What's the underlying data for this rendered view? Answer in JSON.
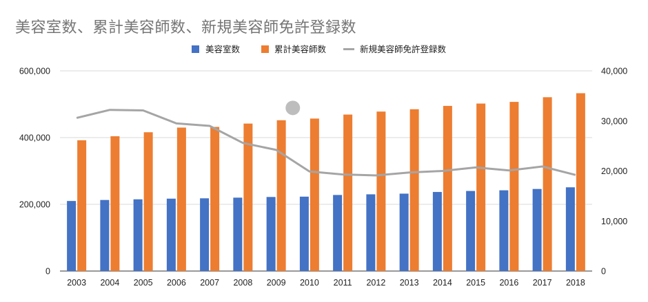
{
  "chart_data": {
    "type": "bar",
    "title": "美容室数、累計美容師数、新規美容師免許登録数",
    "categories": [
      "2003",
      "2004",
      "2005",
      "2006",
      "2007",
      "2008",
      "2009",
      "2010",
      "2011",
      "2012",
      "2013",
      "2014",
      "2015",
      "2016",
      "2017",
      "2018"
    ],
    "series": [
      {
        "name": "美容室数",
        "kind": "bar",
        "axis": "left",
        "color": "#4472C4",
        "values": [
          210000,
          213000,
          215000,
          217000,
          218000,
          220000,
          222000,
          223000,
          228000,
          230000,
          232000,
          237000,
          240000,
          242000,
          246000,
          251000
        ]
      },
      {
        "name": "累計美容師数",
        "kind": "bar",
        "axis": "left",
        "color": "#ED7D31",
        "values": [
          392000,
          404000,
          416000,
          430000,
          432000,
          442000,
          452000,
          457000,
          469000,
          478000,
          485000,
          495000,
          502000,
          507000,
          521000,
          533000
        ]
      },
      {
        "name": "新規美容師免許登録数",
        "kind": "line",
        "axis": "right",
        "color": "#A5A5A5",
        "values": [
          30600,
          32200,
          32100,
          29500,
          29000,
          25600,
          24200,
          19900,
          19300,
          19100,
          19700,
          20000,
          20700,
          20100,
          20900,
          19200
        ]
      }
    ],
    "y_left": {
      "min": 0,
      "max": 600000,
      "ticks": [
        "0",
        "200,000",
        "400,000",
        "600,000"
      ],
      "tick_values": [
        0,
        200000,
        400000,
        600000
      ]
    },
    "y_right": {
      "min": 0,
      "max": 40000,
      "ticks": [
        "0",
        "10,000",
        "20,000",
        "30,000",
        "40,000"
      ],
      "tick_values": [
        0,
        10000,
        20000,
        30000,
        40000
      ]
    },
    "grid": true,
    "legend_position": "top",
    "marker": {
      "x_between": [
        "2009",
        "2010"
      ],
      "y_right": 32600,
      "color": "#BDBDBD"
    }
  }
}
